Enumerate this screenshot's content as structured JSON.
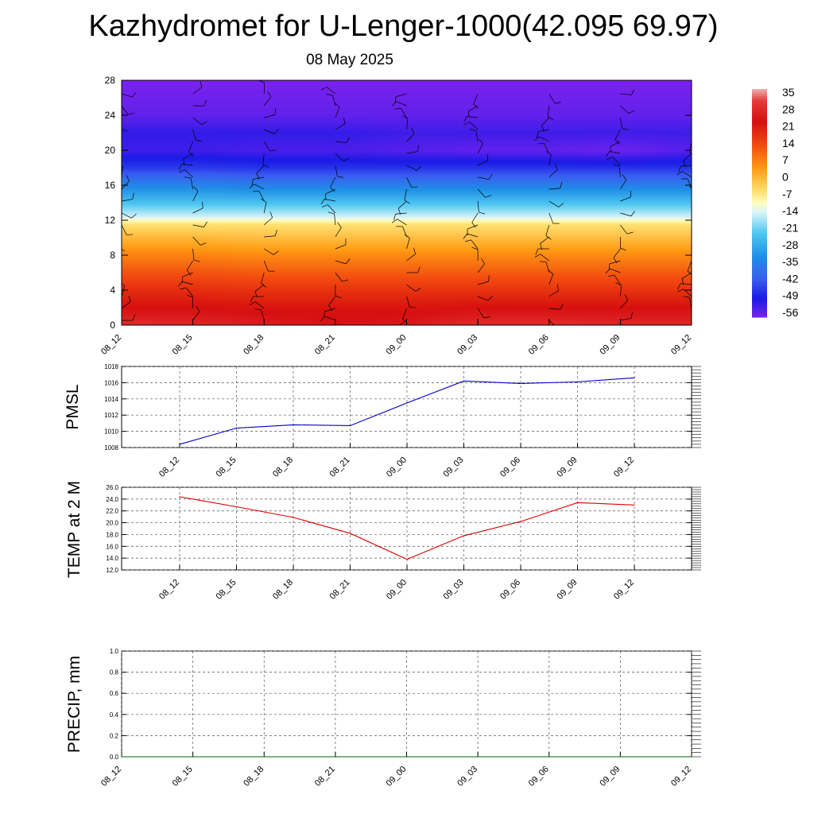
{
  "title": "Kazhydromet for U-Lenger-1000(42.095 69.97)",
  "subtitle": "08 May 2025",
  "chart_data": [
    {
      "type": "heatmap",
      "name": "cross-section",
      "x": [
        "08_12",
        "08_15",
        "08_18",
        "08_21",
        "09_00",
        "09_03",
        "09_06",
        "09_09",
        "09_12"
      ],
      "y_ticks": [
        0,
        4,
        8,
        12,
        16,
        20,
        24,
        28
      ],
      "ylim": [
        0,
        28
      ],
      "levels": [
        {
          "y": 0,
          "values": [
            30,
            29,
            27,
            25,
            26,
            30,
            30,
            29,
            29
          ]
        },
        {
          "y": 2,
          "values": [
            24,
            24,
            23,
            23,
            23,
            24,
            24,
            24,
            24
          ]
        },
        {
          "y": 4,
          "values": [
            19,
            19,
            18,
            18,
            18,
            18,
            18,
            18,
            18
          ]
        },
        {
          "y": 6,
          "values": [
            13,
            13,
            12,
            12,
            12,
            12,
            12,
            12,
            12
          ]
        },
        {
          "y": 8,
          "values": [
            7,
            7,
            6,
            6,
            6,
            6,
            6,
            6,
            6
          ]
        },
        {
          "y": 10,
          "values": [
            0,
            0,
            -1,
            -1,
            -1,
            -1,
            -1,
            -1,
            -1
          ]
        },
        {
          "y": 11.5,
          "values": [
            -6,
            -6,
            -6,
            -6,
            -6,
            -6,
            -6,
            -6,
            -6
          ]
        },
        {
          "y": 12.5,
          "values": [
            -16,
            -16,
            -16,
            -16,
            -16,
            -16,
            -16,
            -16,
            -16
          ]
        },
        {
          "y": 14,
          "values": [
            -25,
            -25,
            -25,
            -25,
            -25,
            -25,
            -25,
            -25,
            -25
          ]
        },
        {
          "y": 16,
          "values": [
            -36,
            -36,
            -37,
            -37,
            -37,
            -37,
            -37,
            -37,
            -37
          ]
        },
        {
          "y": 18,
          "values": [
            -48,
            -48,
            -49,
            -49,
            -49,
            -49,
            -49,
            -49,
            -49
          ]
        },
        {
          "y": 20,
          "values": [
            -55,
            -55,
            -56,
            -56,
            -57,
            -58,
            -58,
            -59,
            -57
          ]
        },
        {
          "y": 22,
          "values": [
            -54,
            -54,
            -54,
            -54,
            -55,
            -55,
            -55,
            -55,
            -55
          ]
        },
        {
          "y": 24,
          "values": [
            -58,
            -58,
            -58,
            -58,
            -58,
            -58,
            -58,
            -58,
            -58
          ]
        },
        {
          "y": 28,
          "values": [
            -60,
            -60,
            -60,
            -60,
            -60,
            -60,
            -60,
            -60,
            -60
          ]
        }
      ],
      "colorbar": {
        "labels": [
          "35",
          "28",
          "21",
          "14",
          "7",
          "0",
          "-7",
          "-14",
          "-21",
          "-28",
          "-35",
          "-42",
          "-49",
          "-56"
        ],
        "stops": [
          {
            "v": 38,
            "color": "#f2b0b0"
          },
          {
            "v": 33,
            "color": "#e63a3a"
          },
          {
            "v": 24,
            "color": "#d60f0f"
          },
          {
            "v": 14,
            "color": "#f24a10"
          },
          {
            "v": 4,
            "color": "#ff9a12"
          },
          {
            "v": -6,
            "color": "#ffe070"
          },
          {
            "v": -11,
            "color": "#fffec0"
          },
          {
            "v": -15,
            "color": "#d9f4fb"
          },
          {
            "v": -24,
            "color": "#4ec7f0"
          },
          {
            "v": -34,
            "color": "#1f8fe6"
          },
          {
            "v": -44,
            "color": "#3a5bf0"
          },
          {
            "v": -52,
            "color": "#1a1ae6"
          },
          {
            "v": -60,
            "color": "#7a22ee"
          }
        ]
      }
    },
    {
      "type": "line",
      "name": "pmsl",
      "ylabel": "PMSL",
      "x": [
        "08_12",
        "08_15",
        "08_18",
        "08_21",
        "09_00",
        "09_03",
        "09_06",
        "09_09",
        "09_12"
      ],
      "values": [
        1008.4,
        1010.4,
        1010.8,
        1010.7,
        1013.5,
        1016.2,
        1015.9,
        1016.1,
        1016.6
      ],
      "y_ticks": [
        "1008",
        "1010",
        "1012",
        "1014",
        "1016",
        "1018"
      ],
      "ylim": [
        1008,
        1018
      ],
      "color": "#0000cc"
    },
    {
      "type": "line",
      "name": "temp",
      "ylabel": "TEMP at 2 M",
      "x": [
        "08_12",
        "08_15",
        "08_18",
        "08_21",
        "09_00",
        "09_03",
        "09_06",
        "09_09",
        "09_12"
      ],
      "values": [
        24.4,
        22.7,
        20.9,
        18.2,
        13.8,
        17.8,
        20.2,
        23.4,
        23.0
      ],
      "y_ticks": [
        "12.0",
        "14.0",
        "16.0",
        "18.0",
        "20.0",
        "22.0",
        "24.0",
        "26.0"
      ],
      "ylim": [
        12,
        26
      ],
      "color": "#dd0000"
    },
    {
      "type": "line",
      "name": "precip",
      "ylabel": "PRECIP, mm",
      "x": [
        "08_12",
        "08_15",
        "08_18",
        "08_21",
        "09_00",
        "09_03",
        "09_06",
        "09_09",
        "09_12"
      ],
      "values": [
        0,
        0,
        0,
        0,
        0,
        0,
        0,
        0,
        0
      ],
      "y_ticks": [
        "0.0",
        "0.2",
        "0.4",
        "0.6",
        "0.8",
        "1.0"
      ],
      "ylim": [
        0,
        1
      ],
      "color": "#006600"
    }
  ]
}
